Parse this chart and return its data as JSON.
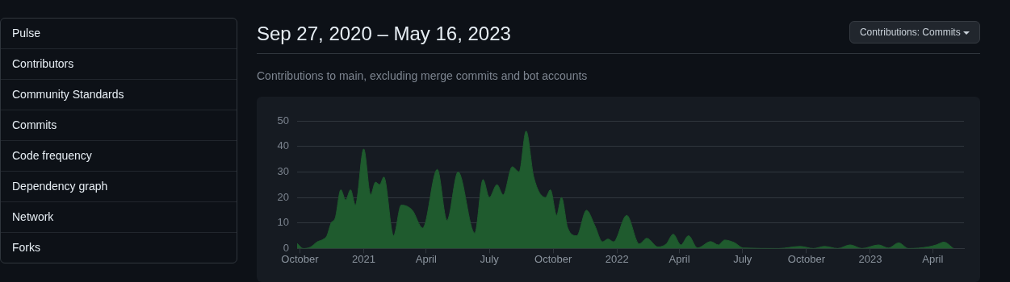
{
  "chart_data": [
    {
      "type": "other",
      "annotations": [
        "Pulse",
        "Contributors",
        "Community Standards",
        "Commits",
        "Code frequency",
        "Dependency graph",
        "Network",
        "Forks"
      ]
    },
    {
      "type": "area",
      "title": "Sep 27, 2020 – May 16, 2023",
      "subtitle": "Contributions to main, excluding merge commits and bot accounts",
      "annotations": [
        "Contributions: Commits"
      ],
      "x": [
        "2020-09-27",
        "2020-10-06",
        "2020-10-16",
        "2020-10-26",
        "2020-11-03",
        "2020-11-09",
        "2020-11-15",
        "2020-11-21",
        "2020-11-29",
        "2020-12-06",
        "2020-12-13",
        "2020-12-20",
        "2021-01-01",
        "2021-01-11",
        "2021-01-18",
        "2021-01-24",
        "2021-01-30",
        "2021-02-13",
        "2021-02-24",
        "2021-03-12",
        "2021-03-27",
        "2021-04-17",
        "2021-05-01",
        "2021-05-17",
        "2021-06-10",
        "2021-06-22",
        "2021-07-01",
        "2021-07-12",
        "2021-07-21",
        "2021-08-03",
        "2021-08-13",
        "2021-08-23",
        "2021-09-03",
        "2021-09-20",
        "2021-09-27",
        "2021-10-06",
        "2021-10-13",
        "2021-10-22",
        "2021-11-04",
        "2021-11-18",
        "2021-11-30",
        "2021-12-11",
        "2021-12-19",
        "2021-12-27",
        "2022-01-15",
        "2022-02-02",
        "2022-02-13",
        "2022-03-01",
        "2022-03-13",
        "2022-03-23",
        "2022-04-03",
        "2022-04-14",
        "2022-04-27",
        "2022-05-16",
        "2022-05-27",
        "2022-06-05",
        "2022-06-19",
        "2022-07-02",
        "2022-08-22",
        "2022-09-22",
        "2022-10-11",
        "2022-10-27",
        "2022-11-15",
        "2022-12-03",
        "2022-12-20",
        "2023-01-13",
        "2023-01-27",
        "2023-02-11",
        "2023-02-25",
        "2023-03-25",
        "2023-04-06",
        "2023-04-17",
        "2023-05-01"
      ],
      "series": [
        {
          "color": "#1f5b2e",
          "values": [
            2,
            0,
            0.5,
            2.6,
            3.5,
            5,
            10,
            12,
            23,
            19,
            23,
            17,
            39,
            21,
            26,
            25,
            28,
            5,
            17,
            15,
            8,
            31,
            11,
            30,
            6,
            27,
            20,
            25,
            21,
            32,
            30,
            46,
            28,
            20,
            23,
            13,
            20,
            8,
            5,
            15,
            9,
            2.6,
            3.7,
            2.6,
            13,
            1.8,
            4,
            0.6,
            1.8,
            5.6,
            1.4,
            5,
            0.2,
            2.7,
            1.4,
            3.3,
            2.3,
            0.2,
            0,
            0.8,
            0,
            0.8,
            0,
            1.4,
            0,
            1.4,
            0.2,
            2.2,
            0,
            0.6,
            1.4,
            2.5,
            0
          ]
        }
      ],
      "xlim": [
        "2020-09-27",
        "2023-05-16"
      ],
      "xticks": [
        {
          "value": "2020-10-01",
          "label": "October"
        },
        {
          "value": "2021-01-01",
          "label": "2021"
        },
        {
          "value": "2021-04-01",
          "label": "April"
        },
        {
          "value": "2021-07-01",
          "label": "July"
        },
        {
          "value": "2021-10-01",
          "label": "October"
        },
        {
          "value": "2022-01-01",
          "label": "2022"
        },
        {
          "value": "2022-04-01",
          "label": "April"
        },
        {
          "value": "2022-07-01",
          "label": "July"
        },
        {
          "value": "2022-10-01",
          "label": "October"
        },
        {
          "value": "2023-01-01",
          "label": "2023"
        },
        {
          "value": "2023-04-01",
          "label": "April"
        }
      ],
      "ylim": [
        0,
        50
      ],
      "yticks": [
        0,
        10,
        20,
        30,
        40,
        50
      ],
      "grid": "y"
    }
  ]
}
